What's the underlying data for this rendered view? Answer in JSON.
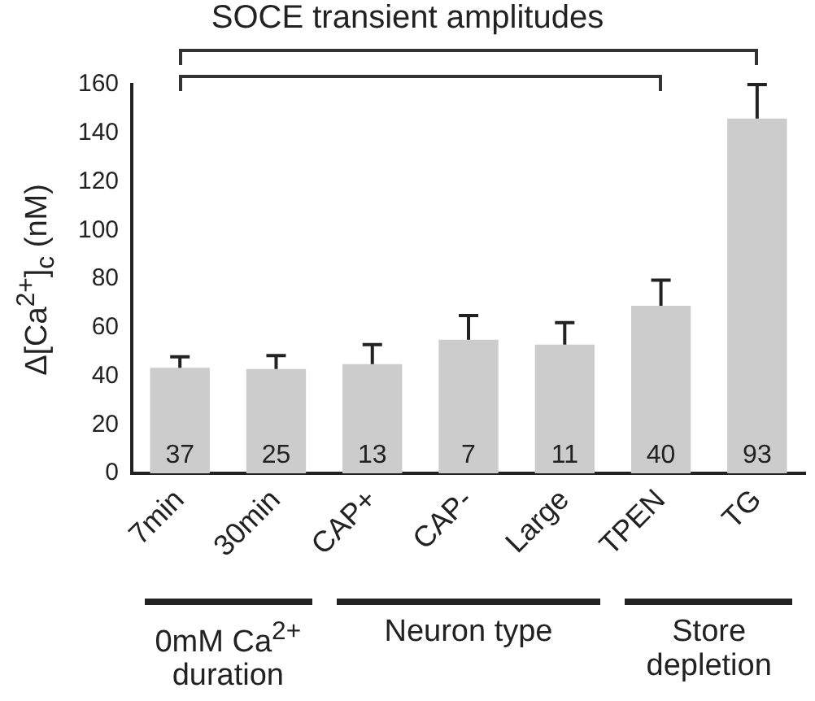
{
  "chart_data": {
    "type": "bar",
    "title": "SOCE transient amplitudes",
    "ylabel": "Δ[Ca$^{2+}$]$_{c}$ (nM)",
    "categories": [
      "7min",
      "30min",
      "CAP+",
      "CAP-",
      "Large",
      "TPEN",
      "TG"
    ],
    "values": [
      43.5,
      43,
      45,
      55,
      53,
      69,
      146
    ],
    "errors": [
      [
        43.5,
        48
      ],
      [
        43,
        48.5
      ],
      [
        45,
        53
      ],
      [
        55,
        65
      ],
      [
        53,
        62
      ],
      [
        69,
        79.5
      ],
      [
        146,
        160
      ]
    ],
    "color": "#cccccc",
    "ylim": [
      0,
      160
    ],
    "yticks": [
      0,
      20,
      40,
      60,
      80,
      100,
      120,
      140,
      160
    ],
    "grid": false,
    "legend": false,
    "annotations": [
      {
        "text": "37",
        "x": "7min",
        "y": 0
      },
      {
        "text": "25",
        "x": "30min",
        "y": 0
      },
      {
        "text": "13",
        "x": "CAP+",
        "y": 0
      },
      {
        "text": "7",
        "x": "CAP-",
        "y": 0
      },
      {
        "text": "11",
        "x": "Large",
        "y": 0
      },
      {
        "text": "40",
        "x": "TPEN",
        "y": 0
      },
      {
        "text": "93",
        "x": "TG",
        "y": 0
      },
      "0mM Ca$^{2+}$ duration",
      "Neuron type",
      "Store depletion"
    ]
  }
}
